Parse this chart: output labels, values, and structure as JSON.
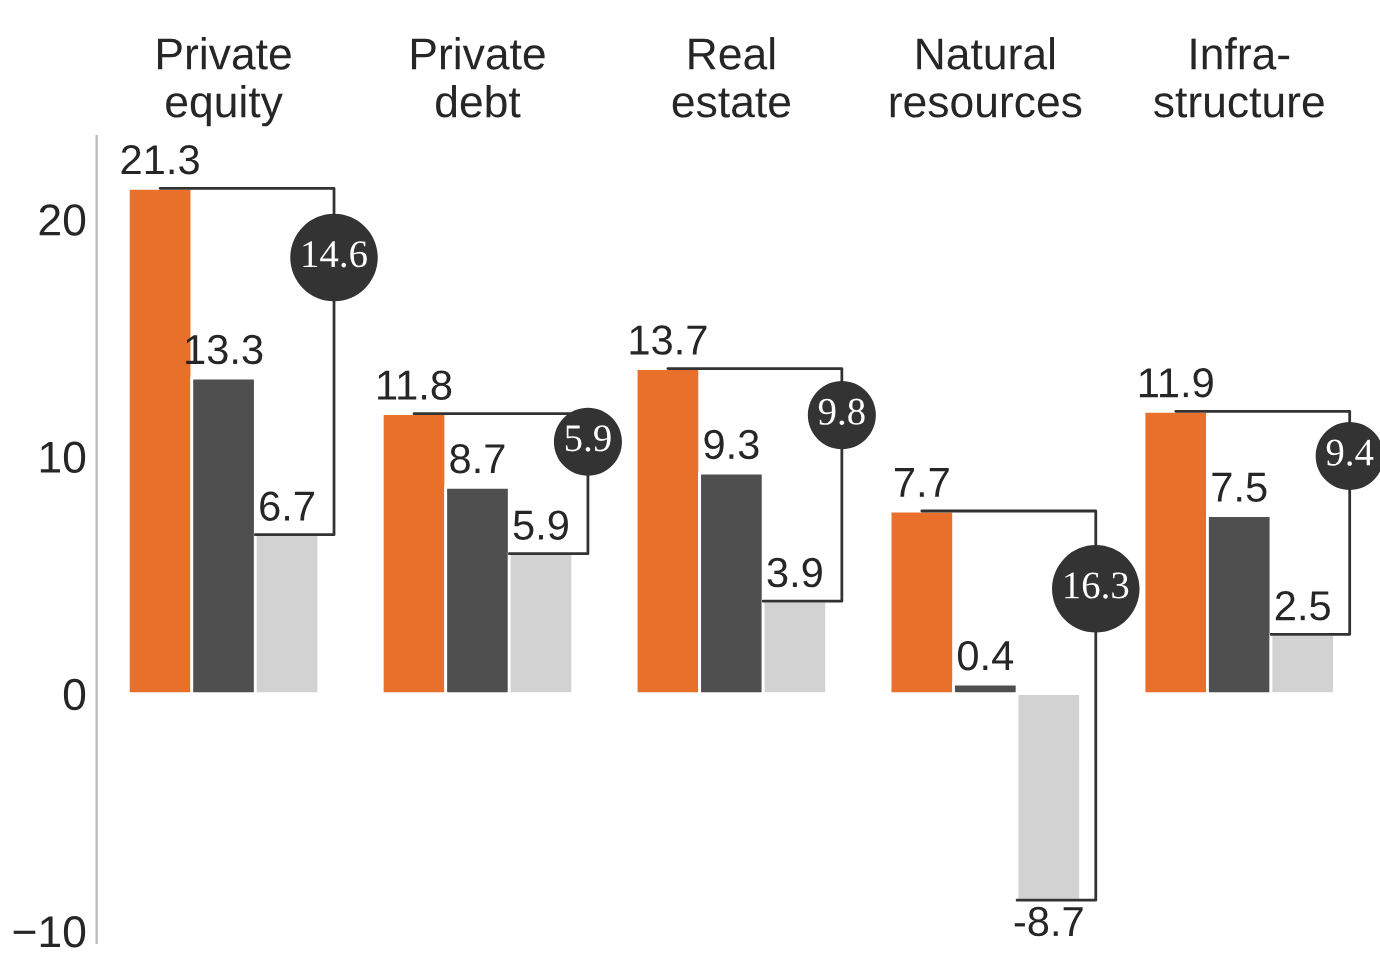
{
  "chart_data": {
    "type": "bar",
    "categories": [
      "Private\nequity",
      "Private\ndebt",
      "Real\nestate",
      "Natural\nresources",
      "Infra-\nstructure"
    ],
    "series": [
      {
        "color": "#e8702a",
        "values": [
          21.3,
          11.8,
          13.7,
          7.7,
          11.9
        ]
      },
      {
        "color": "#4f4f4f",
        "values": [
          13.3,
          8.7,
          9.3,
          0.4,
          7.5
        ]
      },
      {
        "color": "#d2d2d2",
        "values": [
          6.7,
          5.9,
          3.9,
          -8.7,
          2.5
        ]
      }
    ],
    "data_labels": true,
    "ylim": [
      -10.5,
      23.5
    ],
    "yticks": [
      {
        "value": -10,
        "label": "−10"
      },
      0,
      10,
      20
    ],
    "grid": false,
    "legend": false,
    "annotations": [
      "14.6",
      "5.9",
      "9.8",
      "16.3",
      "9.4"
    ]
  }
}
